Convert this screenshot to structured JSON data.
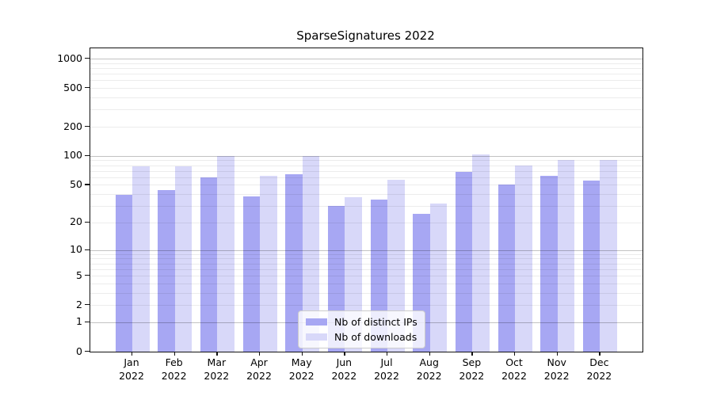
{
  "chart_data": {
    "type": "bar",
    "title": "SparseSignatures 2022",
    "categories": [
      "Jan 2022",
      "Feb 2022",
      "Mar 2022",
      "Apr 2022",
      "May 2022",
      "Jun 2022",
      "Jul 2022",
      "Aug 2022",
      "Sep 2022",
      "Oct 2022",
      "Nov 2022",
      "Dec 2022"
    ],
    "series": [
      {
        "name": "Nb of distinct IPs",
        "color": "#a7a7f3",
        "values": [
          39,
          44,
          60,
          38,
          65,
          30,
          35,
          25,
          68,
          50,
          62,
          55
        ]
      },
      {
        "name": "Nb of downloads",
        "color": "#d8d8f9",
        "values": [
          78,
          78,
          100,
          62,
          99,
          37,
          57,
          32,
          104,
          80,
          90,
          90
        ]
      }
    ],
    "xlabel": "",
    "ylabel": "",
    "yscale": "symlog",
    "ylim": [
      0,
      1276
    ],
    "ytick_labels": [
      "0",
      "1",
      "2",
      "5",
      "10",
      "20",
      "50",
      "100",
      "200",
      "500",
      "1000"
    ],
    "yticks": [
      0,
      1,
      2,
      5,
      10,
      20,
      50,
      100,
      200,
      500,
      1000
    ],
    "grid": {
      "orientation": "horizontal",
      "major_values": [
        1,
        10,
        100,
        1000
      ],
      "minor_values": [
        2,
        3,
        4,
        5,
        6,
        7,
        8,
        9,
        20,
        30,
        40,
        50,
        60,
        70,
        80,
        90,
        200,
        300,
        400,
        500,
        600,
        700,
        800,
        900
      ]
    },
    "legend_position": "lower center"
  }
}
